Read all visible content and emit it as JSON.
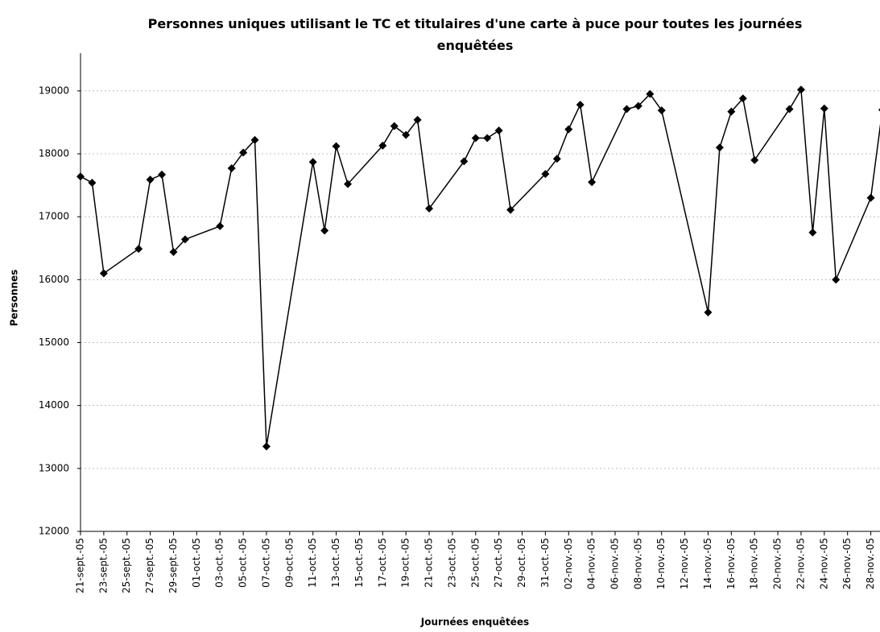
{
  "chart_data": {
    "type": "line",
    "title": "Personnes uniques utilisant le TC et titulaires d'une carte à puce pour toutes les journées enquêtées",
    "xlabel": "Journées enquêtées",
    "ylabel": "Personnes",
    "x": [
      "2005-09-21",
      "2005-09-22",
      "2005-09-23",
      "2005-09-26",
      "2005-09-27",
      "2005-09-28",
      "2005-09-29",
      "2005-09-30",
      "2005-10-03",
      "2005-10-04",
      "2005-10-05",
      "2005-10-06",
      "2005-10-07",
      "2005-10-11",
      "2005-10-12",
      "2005-10-13",
      "2005-10-14",
      "2005-10-17",
      "2005-10-18",
      "2005-10-19",
      "2005-10-20",
      "2005-10-21",
      "2005-10-24",
      "2005-10-25",
      "2005-10-26",
      "2005-10-27",
      "2005-10-28",
      "2005-10-31",
      "2005-11-01",
      "2005-11-02",
      "2005-11-03",
      "2005-11-04",
      "2005-11-07",
      "2005-11-08",
      "2005-11-09",
      "2005-11-10",
      "2005-11-14",
      "2005-11-15",
      "2005-11-16",
      "2005-11-17",
      "2005-11-18",
      "2005-11-21",
      "2005-11-22",
      "2005-11-23",
      "2005-11-24",
      "2005-11-25",
      "2005-11-28",
      "2005-11-29"
    ],
    "series": [
      {
        "name": "Personnes",
        "color": "#000000",
        "values": [
          17640,
          17540,
          16100,
          16490,
          17590,
          17670,
          16440,
          16640,
          16850,
          17770,
          18020,
          18220,
          13350,
          17870,
          16780,
          18120,
          17520,
          18130,
          18440,
          18300,
          18540,
          17130,
          17880,
          18250,
          18250,
          18370,
          17110,
          17680,
          17920,
          18390,
          18780,
          17550,
          18710,
          18760,
          18950,
          18690,
          15480,
          18100,
          18670,
          18880,
          17900,
          18710,
          19020,
          16750,
          18720,
          16000,
          17300,
          18700
        ]
      }
    ],
    "xlim": [
      "2005-09-21",
      "2005-11-29"
    ],
    "xticks": [
      {
        "value": "2005-09-21",
        "label": "21-sept.-05"
      },
      {
        "value": "2005-09-23",
        "label": "23-sept.-05"
      },
      {
        "value": "2005-09-25",
        "label": "25-sept.-05"
      },
      {
        "value": "2005-09-27",
        "label": "27-sept.-05"
      },
      {
        "value": "2005-09-29",
        "label": "29-sept.-05"
      },
      {
        "value": "2005-10-01",
        "label": "01-oct.-05"
      },
      {
        "value": "2005-10-03",
        "label": "03-oct.-05"
      },
      {
        "value": "2005-10-05",
        "label": "05-oct.-05"
      },
      {
        "value": "2005-10-07",
        "label": "07-oct.-05"
      },
      {
        "value": "2005-10-09",
        "label": "09-oct.-05"
      },
      {
        "value": "2005-10-11",
        "label": "11-oct.-05"
      },
      {
        "value": "2005-10-13",
        "label": "13-oct.-05"
      },
      {
        "value": "2005-10-15",
        "label": "15-oct.-05"
      },
      {
        "value": "2005-10-17",
        "label": "17-oct.-05"
      },
      {
        "value": "2005-10-19",
        "label": "19-oct.-05"
      },
      {
        "value": "2005-10-21",
        "label": "21-oct.-05"
      },
      {
        "value": "2005-10-23",
        "label": "23-oct.-05"
      },
      {
        "value": "2005-10-25",
        "label": "25-oct.-05"
      },
      {
        "value": "2005-10-27",
        "label": "27-oct.-05"
      },
      {
        "value": "2005-10-29",
        "label": "29-oct.-05"
      },
      {
        "value": "2005-10-31",
        "label": "31-oct.-05"
      },
      {
        "value": "2005-11-02",
        "label": "02-nov.-05"
      },
      {
        "value": "2005-11-04",
        "label": "04-nov.-05"
      },
      {
        "value": "2005-11-06",
        "label": "06-nov.-05"
      },
      {
        "value": "2005-11-08",
        "label": "08-nov.-05"
      },
      {
        "value": "2005-11-10",
        "label": "10-nov.-05"
      },
      {
        "value": "2005-11-12",
        "label": "12-nov.-05"
      },
      {
        "value": "2005-11-14",
        "label": "14-nov.-05"
      },
      {
        "value": "2005-11-16",
        "label": "16-nov.-05"
      },
      {
        "value": "2005-11-18",
        "label": "18-nov.-05"
      },
      {
        "value": "2005-11-20",
        "label": "20-nov.-05"
      },
      {
        "value": "2005-11-22",
        "label": "22-nov.-05"
      },
      {
        "value": "2005-11-24",
        "label": "24-nov.-05"
      },
      {
        "value": "2005-11-26",
        "label": "26-nov.-05"
      },
      {
        "value": "2005-11-28",
        "label": "28-nov.-05"
      }
    ],
    "ylim": [
      12000,
      19600
    ],
    "yticks": [
      12000,
      13000,
      14000,
      15000,
      16000,
      17000,
      18000,
      19000
    ],
    "grid": true
  }
}
